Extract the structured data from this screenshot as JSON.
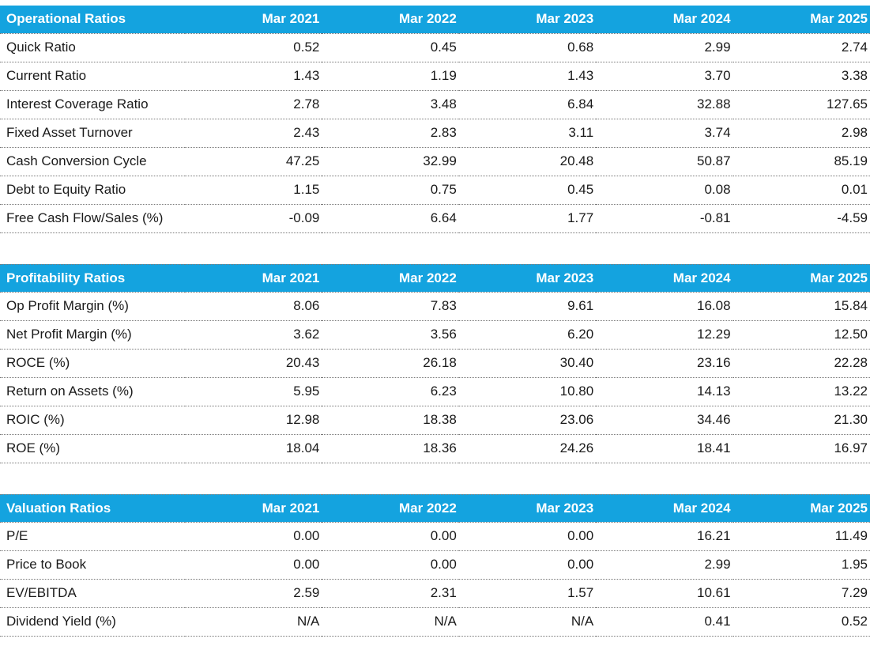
{
  "columns": [
    "Mar 2021",
    "Mar 2022",
    "Mar 2023",
    "Mar 2024",
    "Mar 2025"
  ],
  "tables": [
    {
      "title": "Operational Ratios",
      "rows": [
        {
          "label": "Quick Ratio",
          "values": [
            "0.52",
            "0.45",
            "0.68",
            "2.99",
            "2.74"
          ]
        },
        {
          "label": "Current Ratio",
          "values": [
            "1.43",
            "1.19",
            "1.43",
            "3.70",
            "3.38"
          ]
        },
        {
          "label": "Interest Coverage Ratio",
          "values": [
            "2.78",
            "3.48",
            "6.84",
            "32.88",
            "127.65"
          ]
        },
        {
          "label": "Fixed Asset Turnover",
          "values": [
            "2.43",
            "2.83",
            "3.11",
            "3.74",
            "2.98"
          ]
        },
        {
          "label": "Cash Conversion Cycle",
          "values": [
            "47.25",
            "32.99",
            "20.48",
            "50.87",
            "85.19"
          ]
        },
        {
          "label": "Debt to Equity Ratio",
          "values": [
            "1.15",
            "0.75",
            "0.45",
            "0.08",
            "0.01"
          ]
        },
        {
          "label": "Free Cash Flow/Sales (%)",
          "values": [
            "-0.09",
            "6.64",
            "1.77",
            "-0.81",
            "-4.59"
          ]
        }
      ]
    },
    {
      "title": "Profitability Ratios",
      "rows": [
        {
          "label": "Op Profit Margin (%)",
          "values": [
            "8.06",
            "7.83",
            "9.61",
            "16.08",
            "15.84"
          ]
        },
        {
          "label": "Net Profit Margin (%)",
          "values": [
            "3.62",
            "3.56",
            "6.20",
            "12.29",
            "12.50"
          ]
        },
        {
          "label": "ROCE (%)",
          "values": [
            "20.43",
            "26.18",
            "30.40",
            "23.16",
            "22.28"
          ]
        },
        {
          "label": "Return on Assets (%)",
          "values": [
            "5.95",
            "6.23",
            "10.80",
            "14.13",
            "13.22"
          ]
        },
        {
          "label": "ROIC (%)",
          "values": [
            "12.98",
            "18.38",
            "23.06",
            "34.46",
            "21.30"
          ]
        },
        {
          "label": "ROE (%)",
          "values": [
            "18.04",
            "18.36",
            "24.26",
            "18.41",
            "16.97"
          ]
        }
      ]
    },
    {
      "title": "Valuation Ratios",
      "rows": [
        {
          "label": "P/E",
          "values": [
            "0.00",
            "0.00",
            "0.00",
            "16.21",
            "11.49"
          ]
        },
        {
          "label": "Price to Book",
          "values": [
            "0.00",
            "0.00",
            "0.00",
            "2.99",
            "1.95"
          ]
        },
        {
          "label": "EV/EBITDA",
          "values": [
            "2.59",
            "2.31",
            "1.57",
            "10.61",
            "7.29"
          ]
        },
        {
          "label": "Dividend Yield (%)",
          "values": [
            "N/A",
            "N/A",
            "N/A",
            "0.41",
            "0.52"
          ]
        }
      ]
    }
  ],
  "colors": {
    "header_bg": "#14A3DF",
    "header_text": "#FFFFFF",
    "body_text": "#1A1A1A",
    "row_border": "#7A7A7A"
  }
}
